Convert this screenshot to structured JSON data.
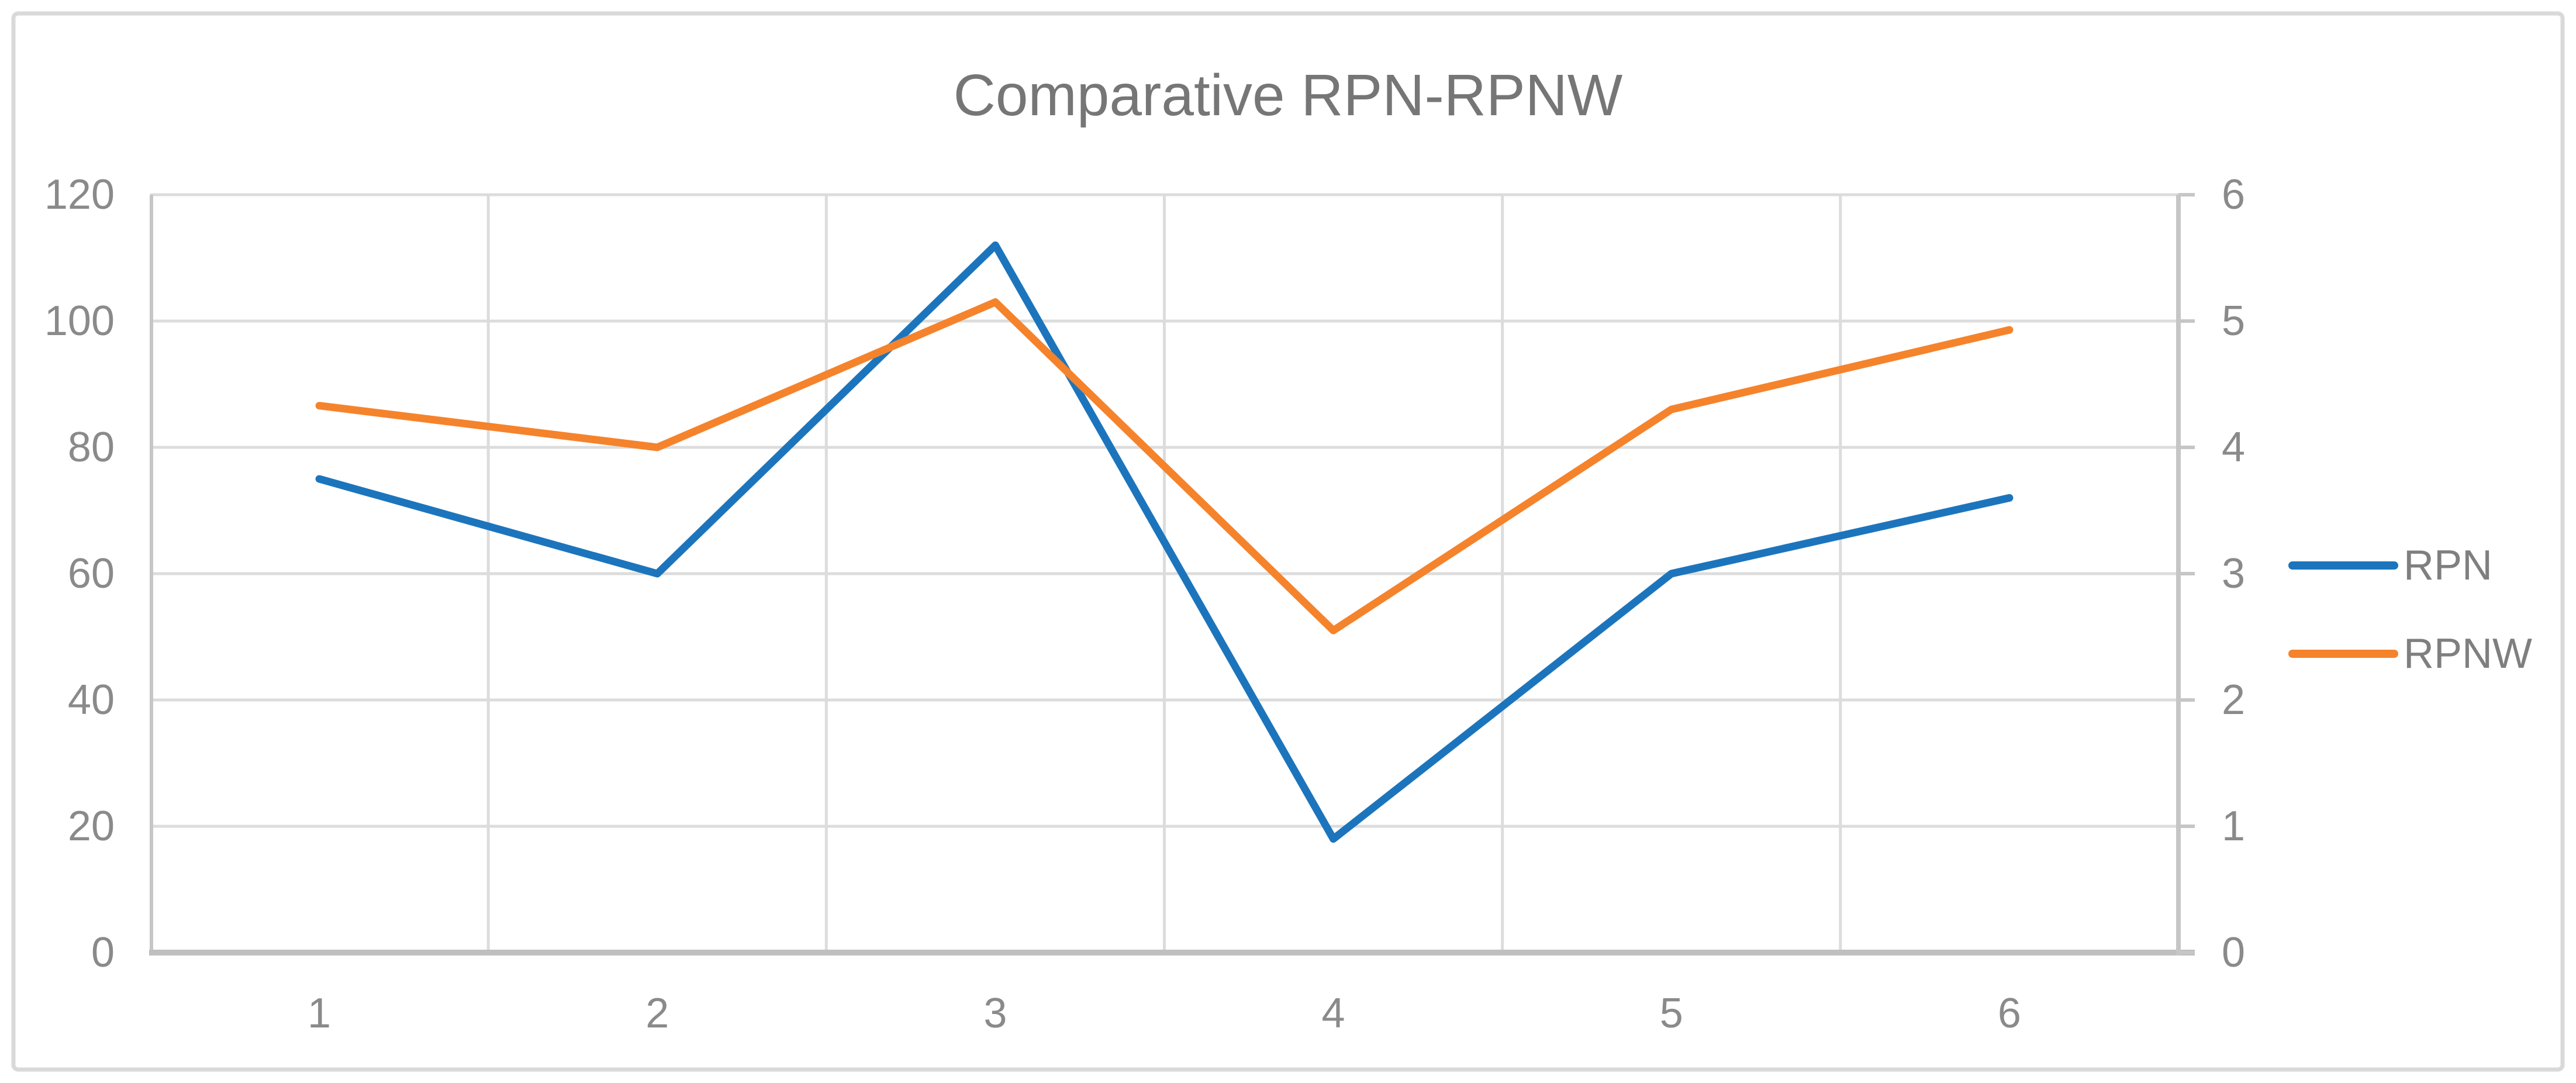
{
  "title": "Comparative RPN-RPNW",
  "colors": {
    "border": "#d9d9d9",
    "grid": "#dcdcdc",
    "axis": "#c6c6c6",
    "axis-strong": "#bfbfbf",
    "title-text": "#767676",
    "tick-text": "#8a8a8a",
    "legend-text": "#7f7f7f",
    "rpn-blue": "#1c75bc",
    "rpnw-orange": "#f5832c"
  },
  "chart_data": {
    "type": "line",
    "title": "Comparative RPN-RPNW",
    "categories": [
      "1",
      "2",
      "3",
      "4",
      "5",
      "6"
    ],
    "series": [
      {
        "name": "RPN",
        "axis": "left",
        "color": "#1c75bc",
        "values": [
          75,
          60,
          112,
          18,
          60,
          72
        ]
      },
      {
        "name": "RPNW",
        "axis": "right",
        "color": "#f5832c",
        "values": [
          4.33,
          4.0,
          5.15,
          2.55,
          4.3,
          4.93
        ]
      }
    ],
    "left_axis": {
      "min": 0,
      "max": 120,
      "ticks": [
        0,
        20,
        40,
        60,
        80,
        100,
        120
      ]
    },
    "right_axis": {
      "min": 0,
      "max": 6,
      "ticks": [
        0,
        1,
        2,
        3,
        4,
        5,
        6
      ]
    },
    "xlabel": "",
    "ylabel": "",
    "grid": true,
    "legend_position": "right-middle"
  },
  "legend": {
    "items": [
      {
        "label": "RPN"
      },
      {
        "label": "RPNW"
      }
    ]
  }
}
